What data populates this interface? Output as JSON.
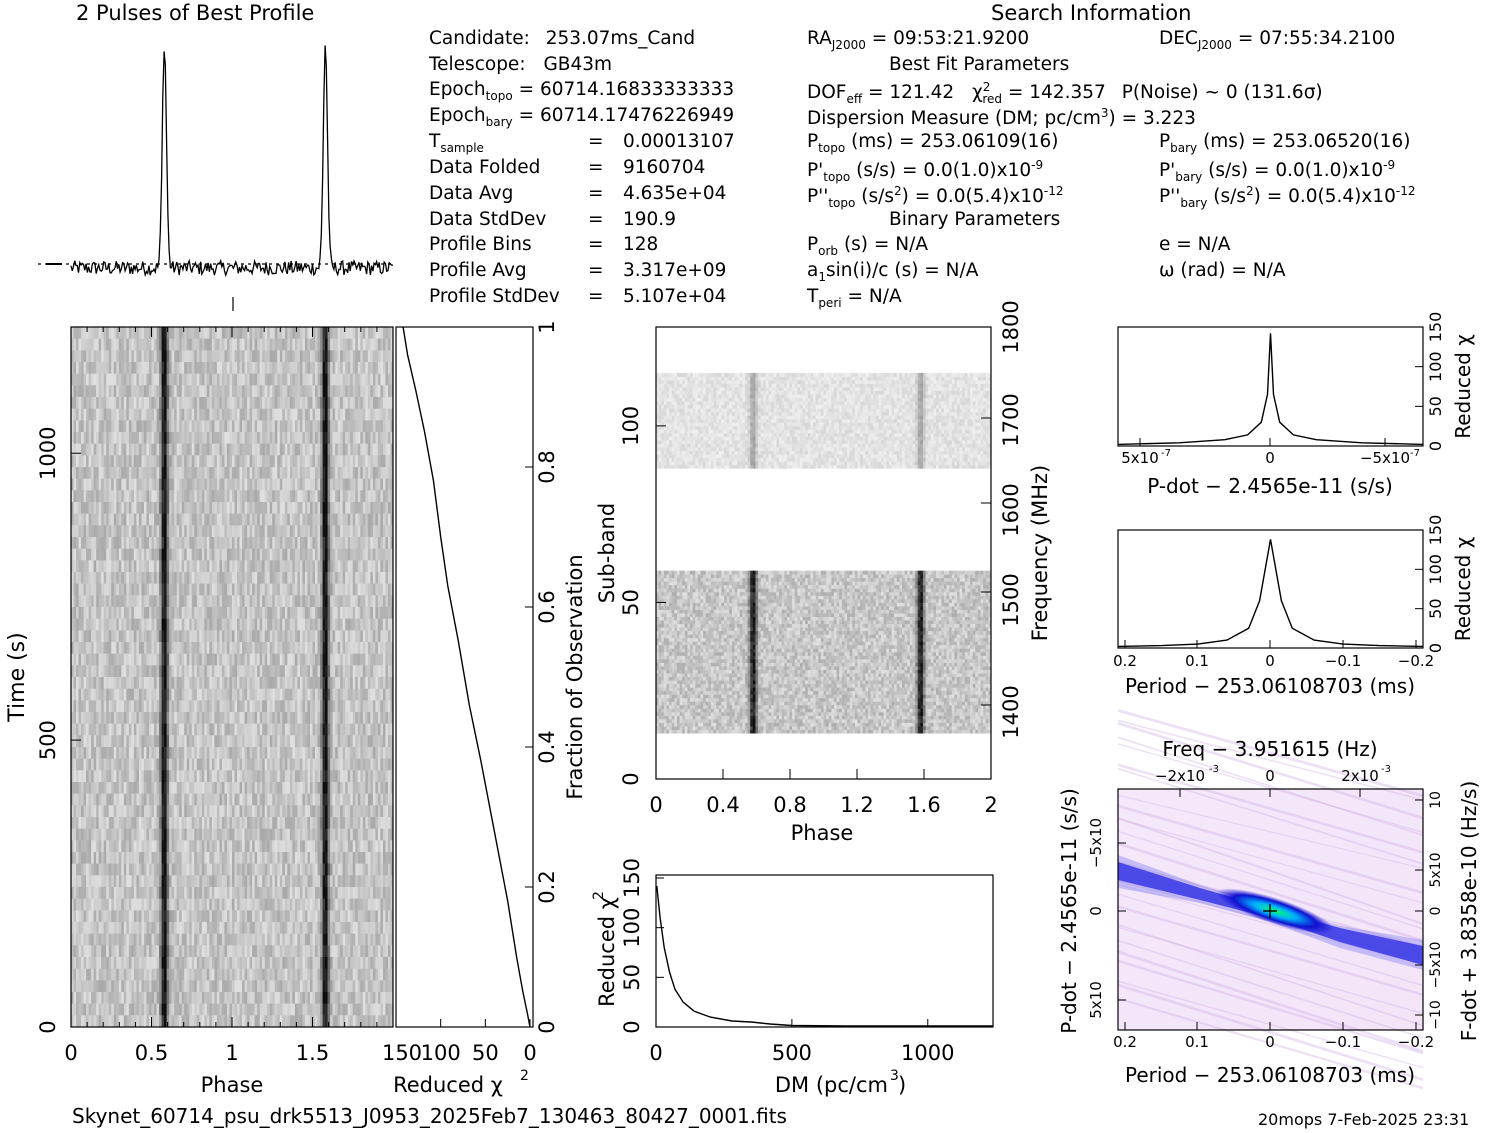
{
  "header": {
    "profile_title": "2 Pulses of Best Profile",
    "search_title": "Search Information",
    "filename": "Skynet_60714_psu_drk5513_J0953_2025Feb7_130463_80427_0001.fits",
    "footer_right": "20mops   7-Feb-2025 23:31"
  },
  "info_left": [
    {
      "label": "Candidate:",
      "value": "253.07ms_Cand"
    },
    {
      "label": "Telescope:",
      "value": "GB43m"
    },
    {
      "label": "Epoch",
      "sub": "topo",
      "value": "= 60714.16833333333"
    },
    {
      "label": "Epoch",
      "sub": "bary",
      "value": "= 60714.17476226949"
    },
    {
      "label": "T",
      "sub": "sample",
      "value": "0.00013107"
    },
    {
      "label": "Data Folded",
      "value": "9160704"
    },
    {
      "label": "Data Avg",
      "value": "4.635e+04"
    },
    {
      "label": "Data StdDev",
      "value": "190.9"
    },
    {
      "label": "Profile Bins",
      "value": "128"
    },
    {
      "label": "Profile Avg",
      "value": "3.317e+09"
    },
    {
      "label": "Profile StdDev",
      "value": "5.107e+04"
    }
  ],
  "info_mid": {
    "ra": "= 09:53:21.9200",
    "ra_label": "RA",
    "ra_sub": "J2000",
    "best_fit_title": "Best Fit Parameters",
    "dof": "DOF",
    "dof_sub": "eff",
    "dof_value": "= 121.42",
    "chi": "χ",
    "chi_sub": "red",
    "chi_value": "= 142.357",
    "pnoise": "P(Noise) ~ 0    (131.6σ)",
    "dm": "Dispersion Measure (DM; pc/cm",
    "dm_value": ") = 3.223",
    "ptopo": "P",
    "ptopo_sub": "topo",
    "ptopo_value": "(ms) =  253.06109(16)",
    "pdtopo_value": "(s/s) = 0.0(1.0)x10",
    "pdtopo_exp": "-9",
    "pddtopo_value": "(s/s",
    "pddtopo_value2": ") = 0.0(5.4)x10",
    "pddtopo_exp": "-12",
    "binary_title": "Binary Parameters",
    "porb": "(s) = N/A",
    "a1": "a",
    "a1_value": "sin(i)/c (s) = N/A",
    "tperi": "T",
    "tperi_sub": "peri",
    "tperi_value": "= N/A"
  },
  "info_right": {
    "dec_label": "DEC",
    "dec_sub": "J2000",
    "dec_value": "= 07:55:34.2100",
    "pbary": "P",
    "pbary_sub": "bary",
    "pbary_value": "(ms) =  253.06520(16)",
    "pdbary_value": "(s/s) = 0.0(1.0)x10",
    "pdbary_exp": "-9",
    "pddbary_value": "(s/s",
    "pddbary_value2": ") = 0.0(5.4)x10",
    "pddbary_exp": "-12",
    "e": "e = N/A",
    "omega": "ω (rad) = N/A"
  },
  "colors": {
    "trace": "#000000",
    "grid_bg": "#ffffff",
    "heat_hi": "#00e07a",
    "heat_mid": "#1010e0",
    "heat_lo": "#f4e6f8"
  },
  "chart_data": [
    {
      "type": "line",
      "name": "profile",
      "title": "2 Pulses of Best Profile",
      "x": [
        0,
        0.5,
        0.57,
        0.6,
        0.65,
        1.0,
        1.5,
        1.57,
        1.6,
        1.65,
        2.0
      ],
      "peak_phases": [
        0.58,
        1.58
      ],
      "baseline_level": 0.04,
      "peak_level": 1.0
    },
    {
      "type": "heatmap",
      "name": "time-phase",
      "xlabel": "Phase",
      "ylabel": "Time (s)",
      "xlim": [
        0,
        2
      ],
      "ylim": [
        0,
        1220
      ],
      "xticks": [
        "0",
        "0.5",
        "1",
        "1.5"
      ],
      "yticks": [
        "0",
        "500",
        "1000"
      ],
      "pulse_phases": [
        0.58,
        1.58
      ]
    },
    {
      "type": "line",
      "name": "reduced-chi2-vs-fraction",
      "xlabel": "Reduced χ",
      "ylabel": "Fraction of Observation",
      "xlim": [
        150,
        0
      ],
      "ylim": [
        0,
        1
      ],
      "xticks": [
        "150",
        "100",
        "50",
        "0"
      ],
      "yticks": [
        "0",
        "0.2",
        "0.4",
        "0.6",
        "0.8",
        "1"
      ],
      "x": [
        0,
        3,
        8,
        15,
        25,
        40,
        55,
        68,
        80,
        92,
        100,
        108,
        118,
        128,
        137,
        142
      ],
      "y": [
        0,
        0.02,
        0.05,
        0.1,
        0.18,
        0.28,
        0.38,
        0.46,
        0.55,
        0.63,
        0.7,
        0.78,
        0.85,
        0.91,
        0.96,
        1.0
      ]
    },
    {
      "type": "heatmap",
      "name": "subband-phase",
      "xlabel": "Phase",
      "ylabel": "Sub-band",
      "y2label": "Frequency (MHz)",
      "xlim": [
        0,
        2
      ],
      "ylim": [
        0,
        128
      ],
      "xticks": [
        "0",
        "0.4",
        "0.8",
        "1.2",
        "1.6",
        "2"
      ],
      "yticks": [
        "0",
        "50",
        "100"
      ],
      "y2ticks": [
        "1400",
        "1500",
        "1600",
        "1700",
        "1800"
      ],
      "bands": [
        [
          13,
          59
        ],
        [
          88,
          115
        ]
      ],
      "pulse_phases": [
        0.58,
        1.58
      ]
    },
    {
      "type": "line",
      "name": "dm-curve",
      "xlabel": "DM (pc/cm",
      "ylabel": "Reduced χ",
      "xlim": [
        0,
        1240
      ],
      "ylim": [
        0,
        150
      ],
      "xticks": [
        "0",
        "500",
        "1000"
      ],
      "yticks": [
        "0",
        "50",
        "100",
        "150"
      ],
      "x": [
        3,
        15,
        30,
        50,
        70,
        100,
        140,
        200,
        280,
        350,
        420,
        500,
        700,
        1000,
        1240
      ],
      "y": [
        142,
        110,
        80,
        55,
        38,
        25,
        16,
        10,
        6,
        5,
        3,
        1.5,
        1,
        1,
        1
      ]
    },
    {
      "type": "line",
      "name": "pdot-curve",
      "xlabel": "P-dot − 2.4565e-11 (s/s)",
      "ylabel": "Reduced χ",
      "ylim": [
        0,
        150
      ],
      "xticks": [
        "5x10",
        "0",
        "−5x10"
      ],
      "yticks": [
        "0",
        "50",
        "100",
        "150"
      ],
      "x": [
        -1,
        -0.6,
        -0.3,
        -0.15,
        -0.06,
        -0.02,
        0,
        0.02,
        0.06,
        0.15,
        0.3,
        0.6,
        1
      ],
      "y": [
        2,
        4,
        8,
        14,
        30,
        65,
        142,
        65,
        30,
        14,
        8,
        4,
        2
      ]
    },
    {
      "type": "line",
      "name": "period-curve",
      "xlabel": "Period − 253.06108703 (ms)",
      "ylabel": "Reduced χ",
      "xlim": [
        0.21,
        -0.21
      ],
      "ylim": [
        0,
        150
      ],
      "xticks": [
        "0.2",
        "0.1",
        "0",
        "−0.1",
        "−0.2"
      ],
      "yticks": [
        "0",
        "50",
        "100",
        "150"
      ],
      "x": [
        0.21,
        0.15,
        0.1,
        0.06,
        0.03,
        0.015,
        0,
        -0.015,
        -0.03,
        -0.06,
        -0.1,
        -0.15,
        -0.21
      ],
      "y": [
        2,
        3,
        5,
        10,
        25,
        60,
        138,
        60,
        25,
        10,
        5,
        3,
        2
      ]
    },
    {
      "type": "heatmap",
      "name": "period-pdot-plane",
      "title": "Freq − 3.951615 (Hz)",
      "xlabel": "Period − 253.06108703 (ms)",
      "ylabel": "P-dot − 2.4565e-11 (s/s)",
      "y2label": "F-dot + 3.8358e-10 (Hz/s)",
      "xticks": [
        "0.2",
        "0.1",
        "0",
        "−0.1",
        "−0.2"
      ],
      "topticks": [
        "−2x10",
        "0",
        "2x10"
      ]
    }
  ]
}
